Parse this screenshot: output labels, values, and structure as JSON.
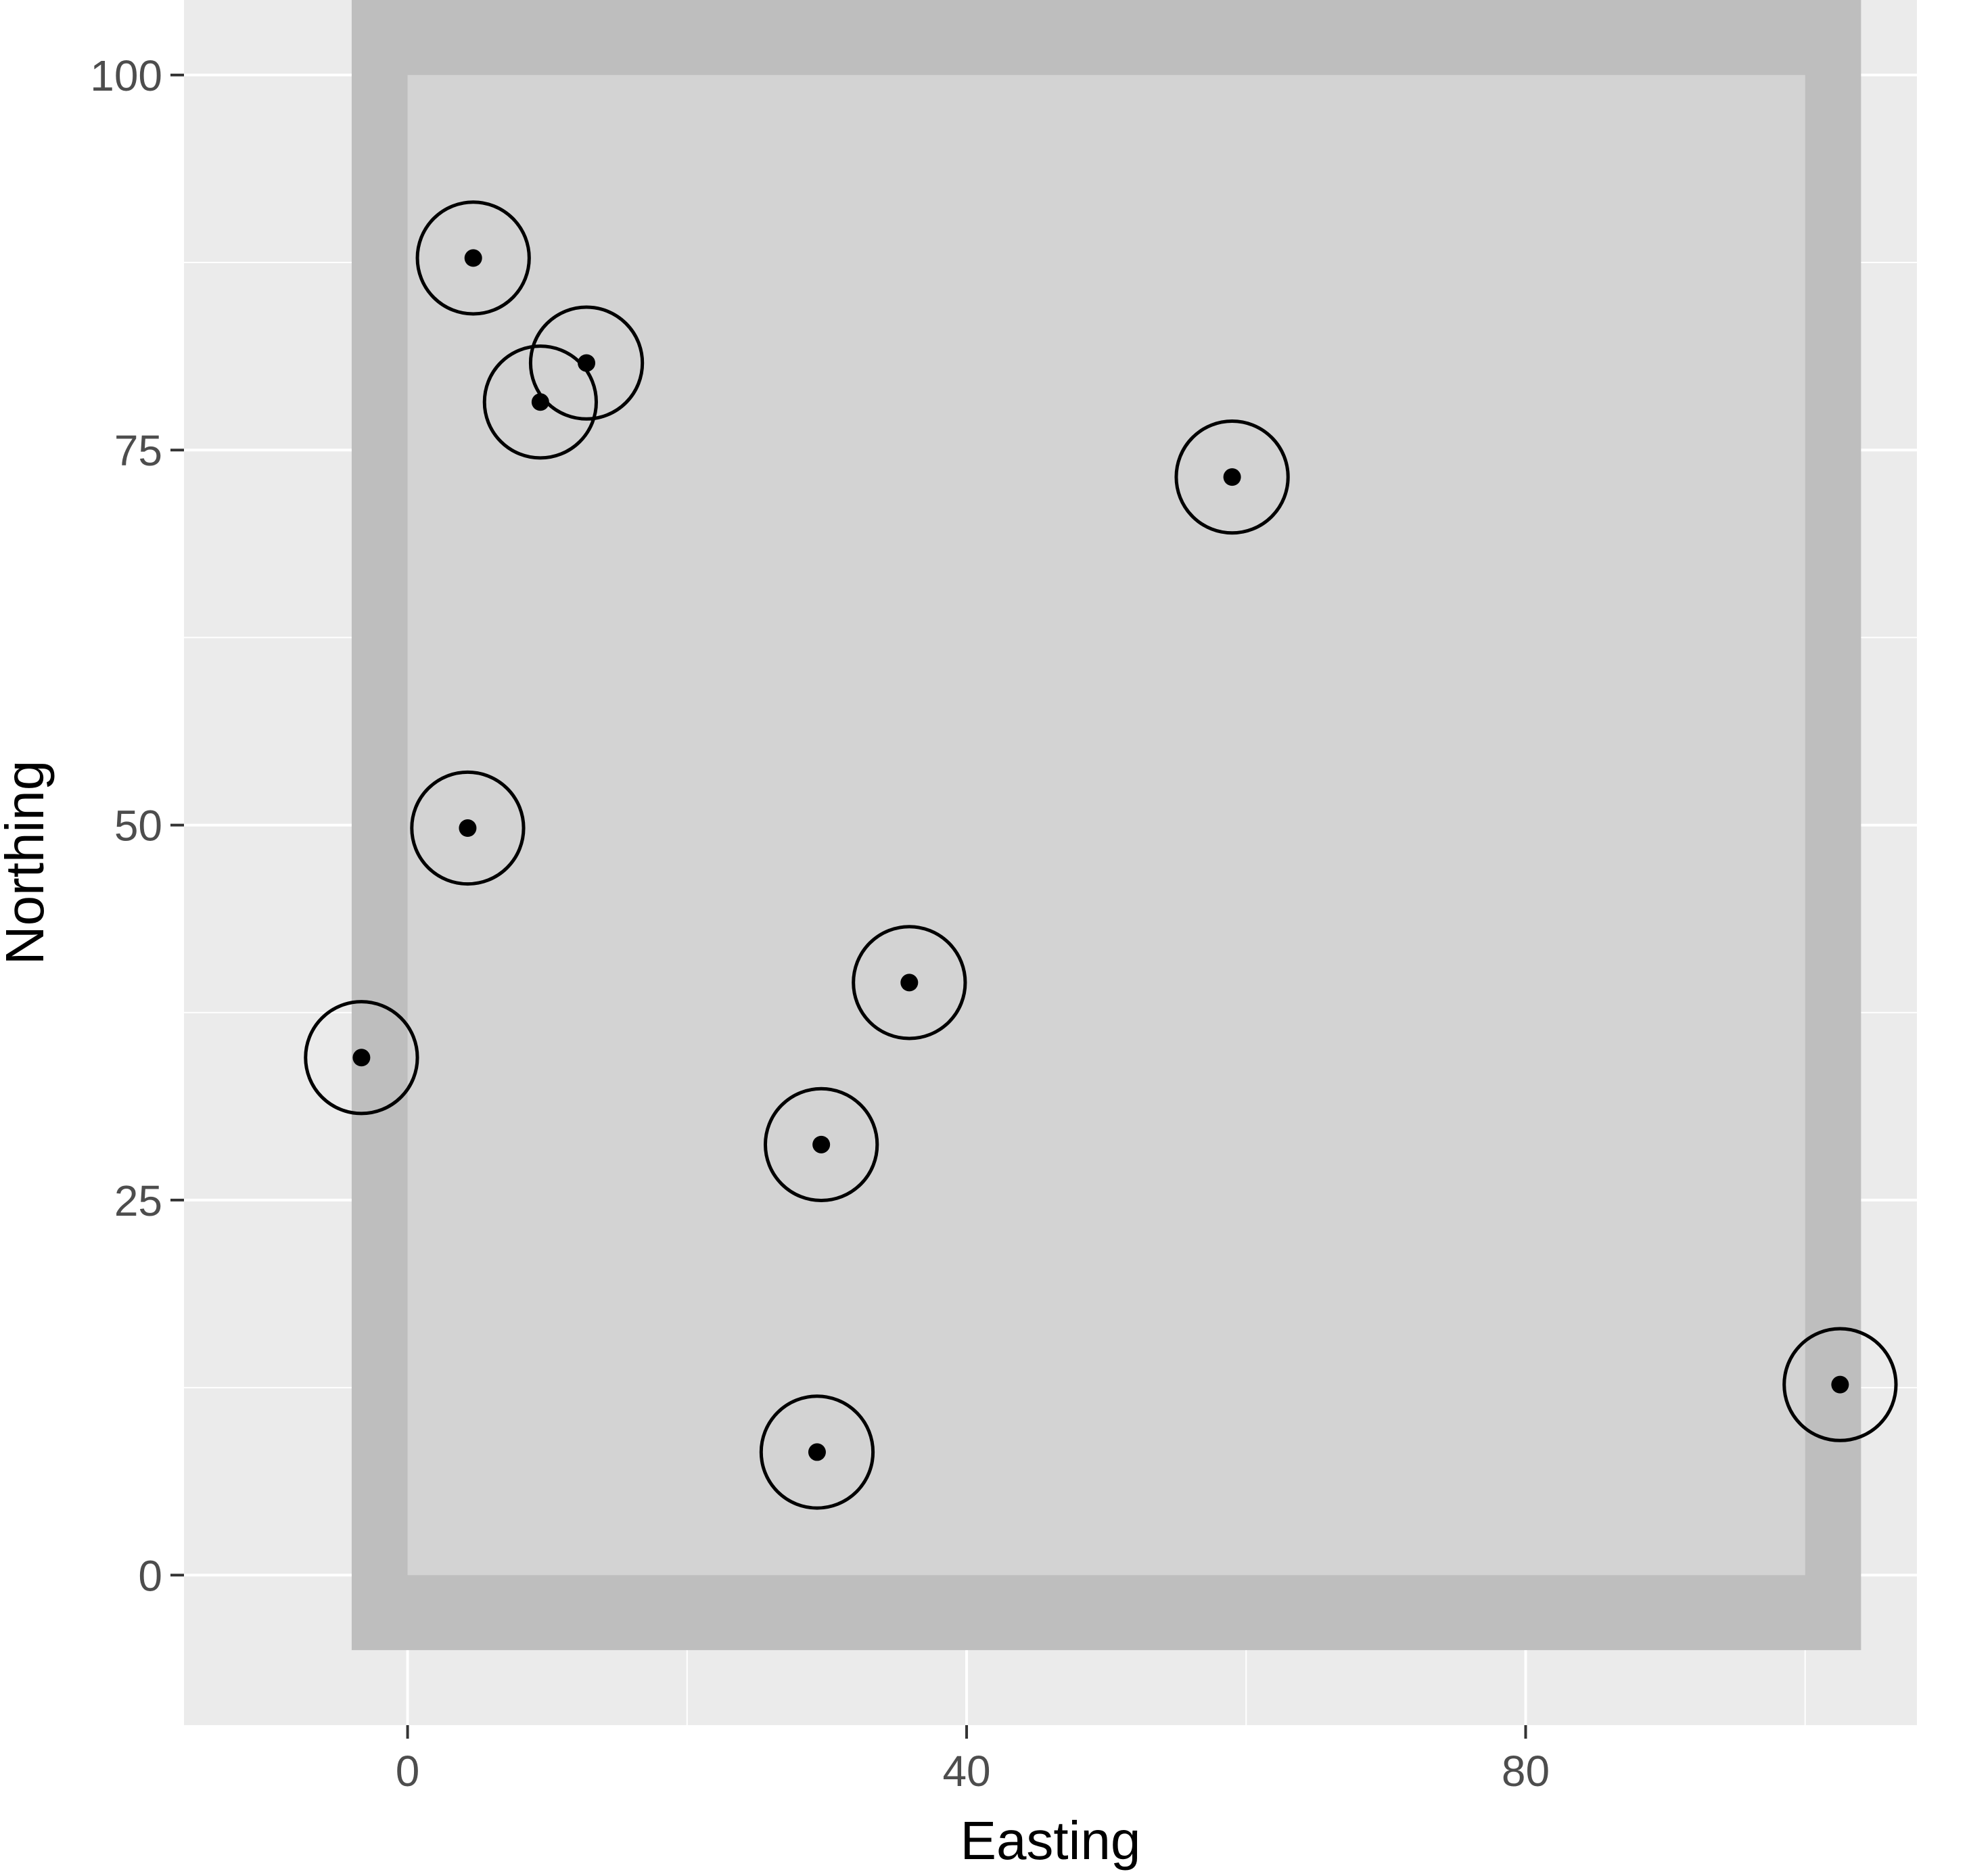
{
  "chart_data": {
    "type": "scatter",
    "title": "",
    "xlabel": "Easting",
    "ylabel": "Northing",
    "xlim": [
      -16,
      108
    ],
    "ylim": [
      -10,
      105
    ],
    "x_ticks": [
      0,
      40,
      80
    ],
    "y_ticks": [
      0,
      25,
      50,
      75,
      100
    ],
    "grid": true,
    "legend": "none",
    "study_area": {
      "inner": {
        "x": [
          0,
          100
        ],
        "y": [
          0,
          100
        ]
      },
      "outer": {
        "x": [
          -4,
          104
        ],
        "y": [
          -5,
          105
        ]
      }
    },
    "buffer_radius": 4,
    "points": [
      {
        "x": 4.7,
        "y": 87.8
      },
      {
        "x": 12.8,
        "y": 80.8
      },
      {
        "x": 9.5,
        "y": 78.2
      },
      {
        "x": 59.0,
        "y": 73.2
      },
      {
        "x": 4.3,
        "y": 49.8
      },
      {
        "x": -3.3,
        "y": 34.5
      },
      {
        "x": 35.9,
        "y": 39.5
      },
      {
        "x": 29.6,
        "y": 28.7
      },
      {
        "x": 29.3,
        "y": 8.2
      },
      {
        "x": 102.5,
        "y": 12.7
      }
    ]
  },
  "colors": {
    "panel_background": "#EBEBEB",
    "grid_line": "#FFFFFF",
    "outer_area": "#BEBEBE",
    "inner_area": "#D3D3D3",
    "point": "#000000",
    "axis_text": "#4D4D4D",
    "axis_title": "#000000",
    "tick": "#333333"
  }
}
